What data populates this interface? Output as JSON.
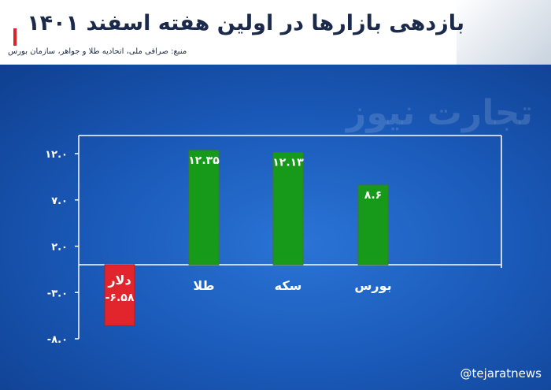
{
  "header": {
    "title": "بازدهی بازارها در اولین هفته اسفند ۱۴۰۱",
    "source": "منبع: صرافی ملی، اتحادیه طلا و جواهر، سازمان بورس"
  },
  "watermark": "تجارت نیوز",
  "handle": "@tejaratnews",
  "chart_data": {
    "type": "bar",
    "categories": [
      "دلار",
      "طلا",
      "سکه",
      "بورس"
    ],
    "values": [
      -6.58,
      12.35,
      12.13,
      8.6
    ],
    "value_labels": [
      "-۶.۵۸",
      "۱۲.۳۵",
      "۱۲.۱۳",
      "۸.۶"
    ],
    "colors": [
      "#e2242c",
      "#179a1a",
      "#179a1a",
      "#179a1a"
    ],
    "yticks": [
      12.0,
      7.0,
      2.0,
      -3.0,
      -8.0
    ],
    "ytick_labels": [
      "۱۲.۰",
      "۷.۰",
      "۲.۰",
      "-۳.۰",
      "-۸.۰"
    ],
    "ylim": [
      -8.0,
      12.0
    ]
  }
}
